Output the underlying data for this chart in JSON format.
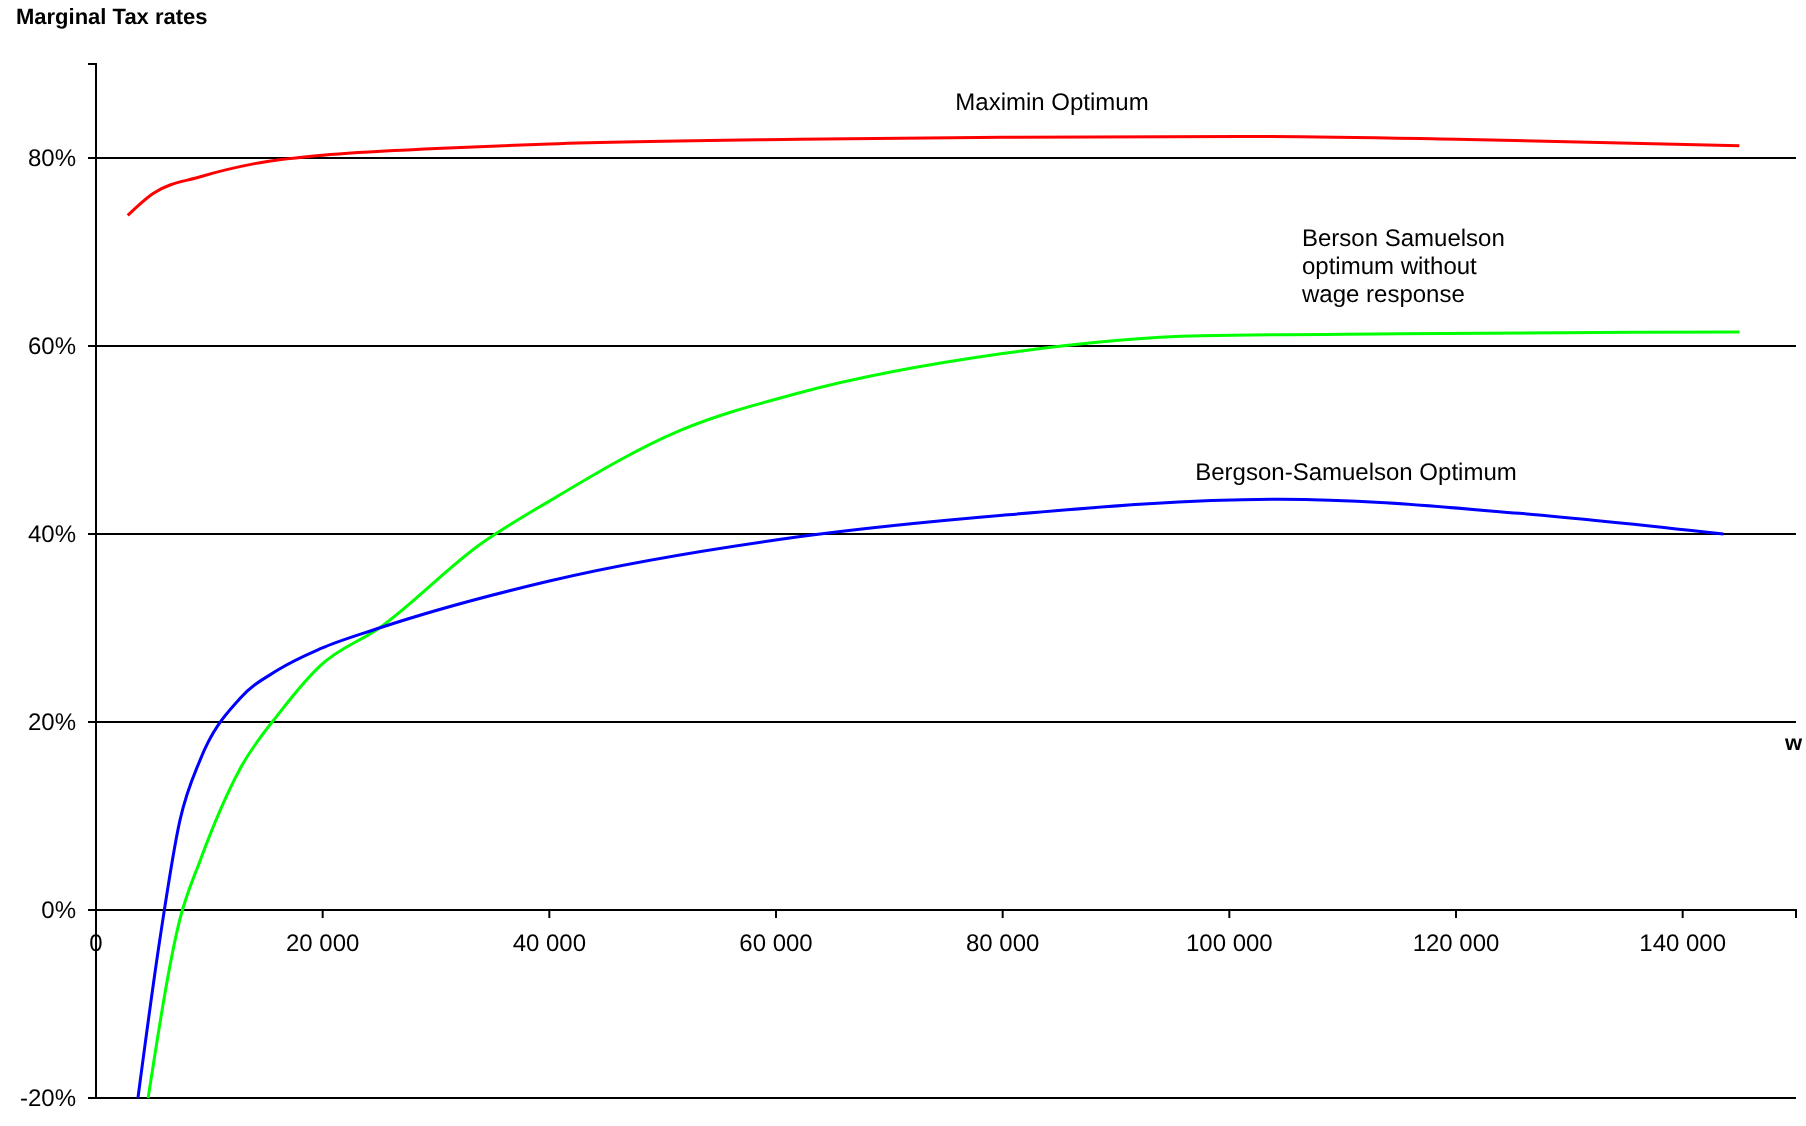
{
  "chart_data": {
    "type": "line",
    "title": "Marginal Tax rates",
    "xlabel": "w",
    "xlim": [
      0,
      150000
    ],
    "xticks": [
      0,
      {
        "value": 20000,
        "label": "20 000"
      },
      {
        "value": 40000,
        "label": "40 000"
      },
      {
        "value": 60000,
        "label": "60 000"
      },
      {
        "value": 80000,
        "label": "80 000"
      },
      {
        "value": 100000,
        "label": "100 000"
      },
      {
        "value": 120000,
        "label": "120 000"
      },
      {
        "value": 140000,
        "label": "140 000"
      }
    ],
    "ylim": [
      -20,
      90
    ],
    "yticks": [
      {
        "value": -20,
        "label": "-20%"
      },
      {
        "value": 0,
        "label": "0%"
      },
      {
        "value": 20,
        "label": "20%"
      },
      {
        "value": 40,
        "label": "40%"
      },
      {
        "value": 60,
        "label": "60%"
      },
      {
        "value": 80,
        "label": "80%"
      }
    ],
    "grid": "y",
    "marker": "none",
    "line_style": "solid",
    "series": [
      {
        "name": "Maximin Optimum",
        "color": "#ff0000",
        "x": [
          2800,
          5000,
          9200,
          14000,
          20000,
          30000,
          40000,
          62000,
          80000,
          101000,
          120000,
          145000
        ],
        "values": [
          73.9,
          76.2,
          78,
          79.4,
          80.3,
          81,
          81.5,
          82,
          82.2,
          82.3,
          82,
          81.3
        ]
      },
      {
        "name": "Berson Samuelson optimum without wage response",
        "color": "#00ff00",
        "x": [
          4600,
          7400,
          9200,
          12700,
          16200,
          19800,
          25000,
          34000,
          40000,
          51500,
          62000,
          80000,
          97500,
          115000,
          145000
        ],
        "values": [
          -20,
          -1,
          5.3,
          15,
          21,
          26,
          30,
          39,
          43.5,
          51,
          55,
          59.2,
          61.1,
          61.3,
          61.5
        ]
      },
      {
        "name": "Bergson-Samuelson Optimum",
        "color": "#0000ff",
        "x": [
          3700,
          5650,
          7400,
          9200,
          12700,
          16000,
          19800,
          25000,
          40000,
          62000,
          80000,
          104500,
          125600,
          143600
        ],
        "values": [
          -20,
          -3,
          9.5,
          16,
          22.5,
          25.5,
          27.8,
          30,
          35,
          39.7,
          42,
          43.7,
          42.2,
          40
        ]
      }
    ]
  }
}
